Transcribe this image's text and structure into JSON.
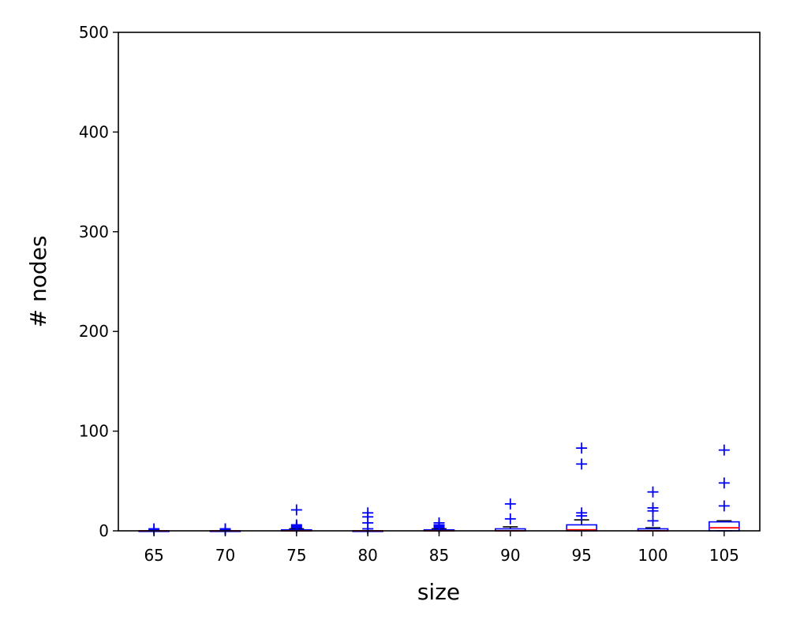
{
  "chart_data": {
    "type": "boxplot",
    "xlabel": "size",
    "ylabel": "# nodes",
    "ylim": [
      0,
      500
    ],
    "yticks": [
      0,
      100,
      200,
      300,
      400,
      500
    ],
    "categories": [
      "65",
      "70",
      "75",
      "80",
      "85",
      "90",
      "95",
      "100",
      "105"
    ],
    "boxes": [
      {
        "category": "65",
        "q1": 0,
        "median": 0,
        "q3": 0,
        "whisker_low": 0,
        "whisker_high": 0,
        "outliers": [
          1,
          2
        ]
      },
      {
        "category": "70",
        "q1": 0,
        "median": 0,
        "q3": 0,
        "whisker_low": 0,
        "whisker_high": 0,
        "outliers": [
          1,
          2
        ]
      },
      {
        "category": "75",
        "q1": 0,
        "median": 0,
        "q3": 1,
        "whisker_low": 0,
        "whisker_high": 2,
        "outliers": [
          3,
          4,
          5,
          6,
          21
        ]
      },
      {
        "category": "80",
        "q1": 0,
        "median": 0,
        "q3": 0,
        "whisker_low": 0,
        "whisker_high": 0,
        "outliers": [
          2,
          8,
          14,
          18
        ]
      },
      {
        "category": "85",
        "q1": 0,
        "median": 0,
        "q3": 1,
        "whisker_low": 0,
        "whisker_high": 2,
        "outliers": [
          3,
          4,
          5,
          6,
          8
        ]
      },
      {
        "category": "90",
        "q1": 0,
        "median": 0,
        "q3": 2,
        "whisker_low": 0,
        "whisker_high": 4,
        "outliers": [
          12,
          27
        ]
      },
      {
        "category": "95",
        "q1": 0,
        "median": 1,
        "q3": 6,
        "whisker_low": 0,
        "whisker_high": 11,
        "outliers": [
          15,
          18,
          67,
          83
        ]
      },
      {
        "category": "100",
        "q1": 0,
        "median": 0,
        "q3": 2,
        "whisker_low": 0,
        "whisker_high": 3,
        "outliers": [
          10,
          20,
          23,
          39
        ]
      },
      {
        "category": "105",
        "q1": 0,
        "median": 3,
        "q3": 9,
        "whisker_low": 0,
        "whisker_high": 10,
        "outliers": [
          25,
          48,
          81
        ]
      }
    ],
    "colors": {
      "box": "#0000ff",
      "median": "#ff0000",
      "whisker": "#000000",
      "outlier": "#0000ff"
    },
    "grid": false
  }
}
